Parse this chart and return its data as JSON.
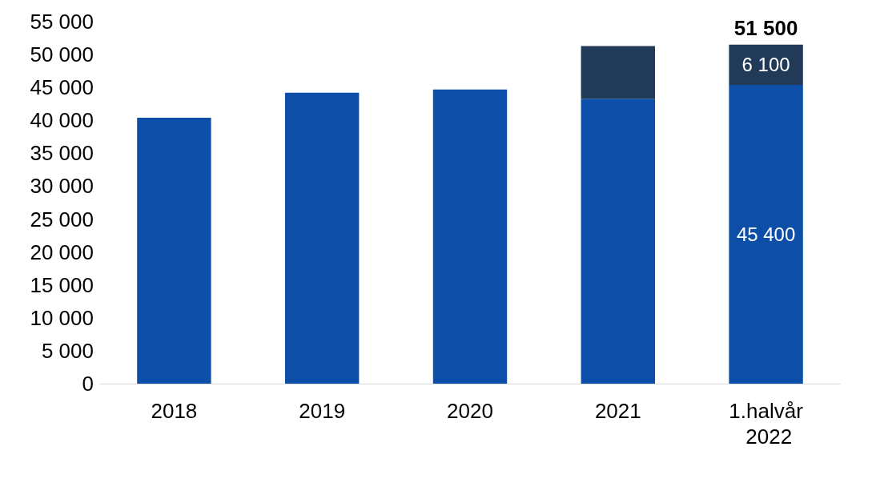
{
  "chart_data": {
    "type": "bar",
    "stacked": true,
    "categories": [
      "2018",
      "2019",
      "2020",
      "2021",
      "1.halvår 2022"
    ],
    "series": [
      {
        "color": "#0d4fa8",
        "values": [
          40400,
          44200,
          44700,
          43300,
          45400
        ],
        "value_labels": [
          null,
          null,
          null,
          null,
          "45 400"
        ]
      },
      {
        "color": "#213a58",
        "values": [
          0,
          0,
          0,
          8000,
          6100
        ],
        "value_labels": [
          null,
          null,
          null,
          null,
          "6 100"
        ]
      }
    ],
    "totals": [
      null,
      null,
      null,
      null,
      "51 500"
    ],
    "ylim": [
      0,
      55000
    ],
    "yticks": [
      0,
      {
        "value": 5000,
        "label": "5 000"
      },
      {
        "value": 10000,
        "label": "10 000"
      },
      {
        "value": 15000,
        "label": "15 000"
      },
      {
        "value": 20000,
        "label": "20 000"
      },
      {
        "value": 25000,
        "label": "25 000"
      },
      {
        "value": 30000,
        "label": "30 000"
      },
      {
        "value": 35000,
        "label": "35 000"
      },
      {
        "value": 40000,
        "label": "40 000"
      },
      {
        "value": 45000,
        "label": "45 000"
      },
      {
        "value": 50000,
        "label": "50 000"
      },
      {
        "value": 55000,
        "label": "55 000"
      }
    ],
    "grid": false
  }
}
